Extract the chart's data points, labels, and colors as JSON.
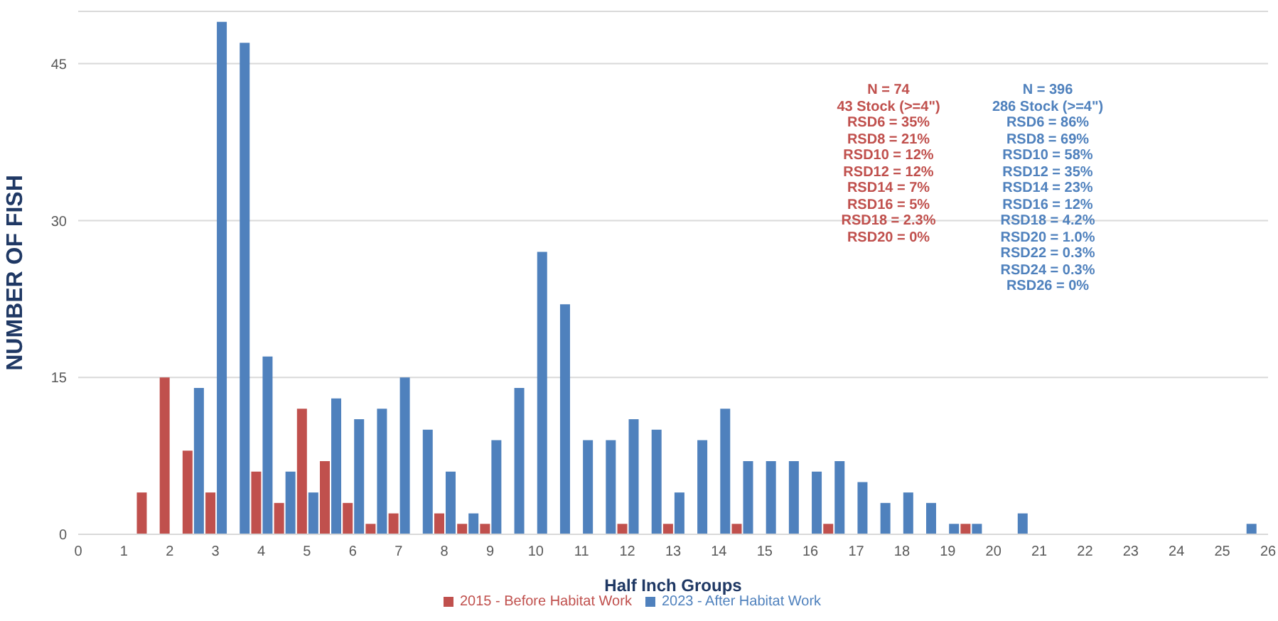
{
  "chart_data": {
    "type": "bar",
    "xlabel": "Half Inch Groups",
    "ylabel": "NUMBER OF FISH",
    "x": [
      1.5,
      2,
      2.5,
      3,
      3.5,
      4,
      4.5,
      5,
      5.5,
      6,
      6.5,
      7,
      7.5,
      8,
      8.5,
      9,
      9.5,
      10,
      10.5,
      11,
      11.5,
      12,
      12.5,
      13,
      13.5,
      14,
      14.5,
      15,
      15.5,
      16,
      16.5,
      17,
      17.5,
      18,
      18.5,
      19,
      19.5,
      20,
      20.5,
      21,
      21.5,
      22,
      22.5,
      23,
      23.5,
      24,
      24.5,
      25,
      25.5
    ],
    "series": [
      {
        "name": "2015 - Before Habitat Work",
        "color": "#c0504d",
        "values": [
          4,
          15,
          8,
          4,
          0,
          6,
          3,
          12,
          7,
          3,
          1,
          2,
          0,
          2,
          1,
          1,
          0,
          0,
          0,
          0,
          0,
          1,
          0,
          1,
          0,
          0,
          1,
          0,
          0,
          0,
          1,
          0,
          0,
          0,
          0,
          0,
          1,
          0,
          0,
          0,
          0,
          0,
          0,
          0,
          0,
          0,
          0,
          0,
          0
        ]
      },
      {
        "name": "2023 - After Habitat Work",
        "color": "#4f81bd",
        "values": [
          0,
          0,
          14,
          49,
          47,
          17,
          6,
          4,
          13,
          11,
          12,
          15,
          10,
          6,
          2,
          9,
          14,
          27,
          22,
          9,
          9,
          11,
          10,
          4,
          9,
          12,
          7,
          7,
          7,
          6,
          7,
          5,
          3,
          4,
          3,
          1,
          1,
          0,
          2,
          0,
          0,
          0,
          0,
          0,
          0,
          0,
          0,
          0,
          1
        ]
      }
    ],
    "xlim": [
      0,
      26
    ],
    "xticks": [
      0,
      1,
      2,
      3,
      4,
      5,
      6,
      7,
      8,
      9,
      10,
      11,
      12,
      13,
      14,
      15,
      16,
      17,
      18,
      19,
      20,
      21,
      22,
      23,
      24,
      25,
      26
    ],
    "ylim": [
      0,
      50
    ],
    "yticks": [
      0,
      15,
      30,
      45
    ],
    "grid": "y",
    "legend": "bottom",
    "annotations": [
      "N = 74\n43 Stock (>=4\")\nRSD6 = 35%\nRSD8 = 21%\nRSD10 = 12%\nRSD12 = 12%\nRSD14 = 7%\nRSD16 = 5%\nRSD18 = 2.3%\nRSD20 = 0%",
      "N = 396\n286 Stock (>=4\")\nRSD6 = 86%\nRSD8 = 69%\nRSD10 = 58%\nRSD12 = 35%\nRSD14 = 23%\nRSD16 = 12%\nRSD18 = 4.2%\nRSD20 = 1.0%\nRSD22 = 0.3%\nRSD24 = 0.3%\nRSD26 = 0%"
    ]
  }
}
